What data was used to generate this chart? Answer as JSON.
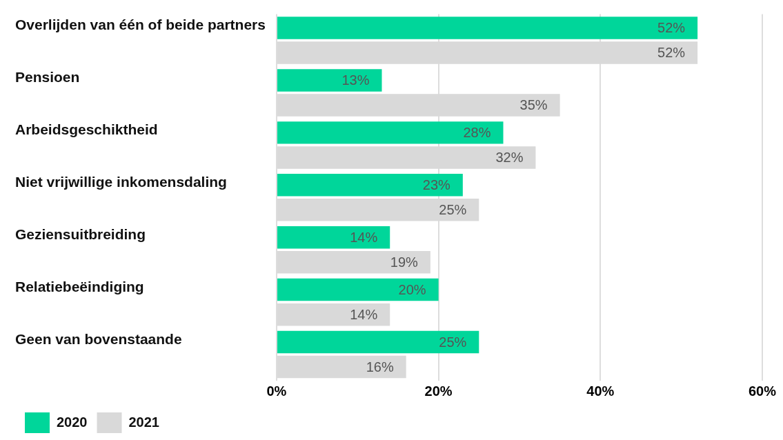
{
  "chart_data": {
    "type": "bar",
    "orientation": "horizontal",
    "categories": [
      "Overlijden van één of beide partners",
      "Pensioen",
      "Arbeidsgeschiktheid",
      "Niet vrijwillige inkomensdaling",
      "Geziensuitbreiding",
      "Relatiebeëindiging",
      "Geen van bovenstaande"
    ],
    "series": [
      {
        "name": "2020",
        "color": "#00d69a",
        "values": [
          52,
          13,
          28,
          23,
          14,
          20,
          25
        ],
        "value_labels": [
          "52%",
          "13%",
          "28%",
          "23%",
          "14%",
          "20%",
          "25%"
        ]
      },
      {
        "name": "2021",
        "color": "#d9d9d9",
        "values": [
          52,
          35,
          32,
          25,
          19,
          14,
          16
        ],
        "value_labels": [
          "52%",
          "35%",
          "32%",
          "25%",
          "19%",
          "14%",
          "16%"
        ]
      }
    ],
    "xlim": [
      0,
      60
    ],
    "xticks": [
      {
        "value": 0,
        "label": "0%"
      },
      {
        "value": 20,
        "label": "20%"
      },
      {
        "value": 40,
        "label": "40%"
      },
      {
        "value": 60,
        "label": "60%"
      }
    ],
    "grid": "x",
    "legend": "bottom left"
  }
}
